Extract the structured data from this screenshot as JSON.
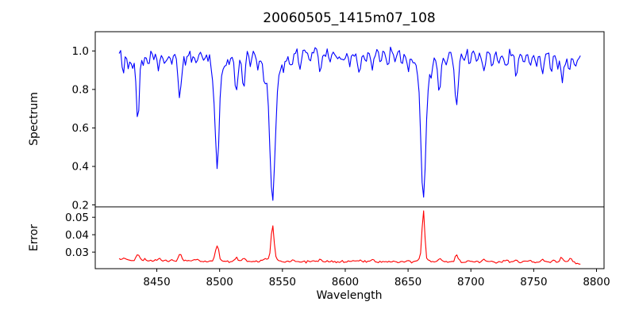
{
  "title": "20060505_1415m07_108",
  "chart_data": {
    "type": "line",
    "title": "20060505_1415m07_108",
    "xlabel": "Wavelength",
    "xlim": [
      8401,
      8806
    ],
    "xticks": [
      {
        "value": 8450,
        "label": "8450"
      },
      {
        "value": 8500,
        "label": "8500"
      },
      {
        "value": 8550,
        "label": "8550"
      },
      {
        "value": 8600,
        "label": "8600"
      },
      {
        "value": 8650,
        "label": "8650"
      },
      {
        "value": 8700,
        "label": "8700"
      },
      {
        "value": 8750,
        "label": "8750"
      },
      {
        "value": 8800,
        "label": "8800"
      }
    ],
    "x_data_range": [
      8420,
      8788
    ],
    "sample_step_angstrom": 1.2,
    "noise_seed": 20060505,
    "grid": false,
    "legend": "none",
    "panels": [
      {
        "name": "spectrum",
        "ylabel": "Spectrum",
        "line_color": "#0000ff",
        "ylim": [
          0.19,
          1.1
        ],
        "yticks": [
          {
            "value": 1.0,
            "label": "1.0"
          },
          {
            "value": 0.8,
            "label": "0.8"
          },
          {
            "value": 0.6,
            "label": "0.6"
          },
          {
            "value": 0.4,
            "label": "0.4"
          },
          {
            "value": 0.2,
            "label": "0.2"
          }
        ]
      },
      {
        "name": "error",
        "ylabel": "Error",
        "line_color": "#ff0000",
        "ylim": [
          0.0205,
          0.056
        ],
        "yticks": [
          {
            "value": 0.05,
            "label": "0.05"
          },
          {
            "value": 0.04,
            "label": "0.04"
          },
          {
            "value": 0.03,
            "label": "0.03"
          }
        ]
      }
    ],
    "spectrum": {
      "description": "blue flux curve, continuum near 1.0 with absorption lines; deepest cores: 8498 to 0.41, 8542 to 0.24, 8662 to 0.26, 8435 to 0.67, 8468 to 0.78, 8688 to 0.73",
      "continuum_points": [
        [
          8420,
          0.978
        ],
        [
          8450,
          0.987
        ],
        [
          8520,
          0.993
        ],
        [
          8650,
          0.993
        ],
        [
          8700,
          0.987
        ],
        [
          8788,
          0.974
        ]
      ],
      "noise_sigma": 0.013,
      "absorption_lines_center_depth_width": [
        [
          8423.5,
          0.09,
          1.0
        ],
        [
          8427,
          0.07,
          0.9
        ],
        [
          8431,
          0.05,
          0.9
        ],
        [
          8434.8,
          0.33,
          1.2
        ],
        [
          8439,
          0.06,
          0.9
        ],
        [
          8443,
          0.05,
          0.9
        ],
        [
          8447,
          0.04,
          0.8
        ],
        [
          8451.5,
          0.08,
          1.0
        ],
        [
          8456,
          0.05,
          0.9
        ],
        [
          8462,
          0.07,
          1.0
        ],
        [
          8468.4,
          0.22,
          1.4
        ],
        [
          8473,
          0.05,
          0.9
        ],
        [
          8478,
          0.04,
          0.9
        ],
        [
          8482,
          0.05,
          0.9
        ],
        [
          8488,
          0.04,
          0.9
        ],
        [
          8494,
          0.05,
          0.9
        ],
        [
          8498.0,
          0.52,
          1.7
        ],
        [
          8498.0,
          0.06,
          5.0
        ],
        [
          8504,
          0.04,
          0.9
        ],
        [
          8508.5,
          0.06,
          0.9
        ],
        [
          8513.5,
          0.21,
          1.2
        ],
        [
          8519,
          0.18,
          1.3
        ],
        [
          8524,
          0.06,
          0.9
        ],
        [
          8530,
          0.05,
          0.9
        ],
        [
          8536,
          0.07,
          1.0
        ],
        [
          8542.1,
          0.66,
          2.2
        ],
        [
          8542.1,
          0.09,
          8.0
        ],
        [
          8551,
          0.05,
          1.0
        ],
        [
          8557,
          0.06,
          1.0
        ],
        [
          8564,
          0.07,
          1.0
        ],
        [
          8572,
          0.05,
          0.9
        ],
        [
          8580,
          0.1,
          1.1
        ],
        [
          8588,
          0.06,
          0.9
        ],
        [
          8594,
          0.04,
          0.9
        ],
        [
          8598,
          0.06,
          0.9
        ],
        [
          8604,
          0.05,
          0.9
        ],
        [
          8611.2,
          0.11,
          1.2
        ],
        [
          8616,
          0.05,
          0.9
        ],
        [
          8621.5,
          0.08,
          1.0
        ],
        [
          8628,
          0.05,
          0.9
        ],
        [
          8634,
          0.06,
          0.9
        ],
        [
          8640,
          0.05,
          0.9
        ],
        [
          8645,
          0.05,
          0.9
        ],
        [
          8650,
          0.06,
          0.9
        ],
        [
          8662.2,
          0.65,
          2.0
        ],
        [
          8662.2,
          0.09,
          7.0
        ],
        [
          8669,
          0.05,
          0.9
        ],
        [
          8675,
          0.19,
          1.2
        ],
        [
          8680,
          0.07,
          0.9
        ],
        [
          8688.6,
          0.26,
          1.4
        ],
        [
          8694,
          0.05,
          0.9
        ],
        [
          8699,
          0.06,
          0.9
        ],
        [
          8705,
          0.05,
          0.9
        ],
        [
          8710,
          0.09,
          1.0
        ],
        [
          8717,
          0.07,
          1.0
        ],
        [
          8722,
          0.05,
          0.9
        ],
        [
          8728,
          0.08,
          1.0
        ],
        [
          8736,
          0.1,
          1.1
        ],
        [
          8742,
          0.05,
          0.9
        ],
        [
          8747,
          0.07,
          1.0
        ],
        [
          8752,
          0.05,
          0.9
        ],
        [
          8757,
          0.09,
          1.0
        ],
        [
          8764,
          0.07,
          1.0
        ],
        [
          8769,
          0.06,
          0.9
        ],
        [
          8773,
          0.12,
          1.1
        ],
        [
          8778,
          0.08,
          1.0
        ],
        [
          8783,
          0.06,
          0.9
        ]
      ]
    },
    "error": {
      "description": "red error curve, baseline ~0.025; spikes at absorption lines: 8498 to 0.034, 8542 to 0.046, 8662 to 0.055",
      "baseline_points": [
        [
          8420,
          0.0256
        ],
        [
          8435,
          0.0252
        ],
        [
          8460,
          0.025
        ],
        [
          8500,
          0.0247
        ],
        [
          8560,
          0.0246
        ],
        [
          8640,
          0.0245
        ],
        [
          8700,
          0.0243
        ],
        [
          8760,
          0.0242
        ],
        [
          8783,
          0.024
        ],
        [
          8788,
          0.0233
        ]
      ],
      "noise_sigma": 0.00032,
      "peaks_center_height_width": [
        [
          8424,
          0.0012,
          1.5
        ],
        [
          8434.8,
          0.0035,
          1.4
        ],
        [
          8440,
          0.0008,
          1.2
        ],
        [
          8451.5,
          0.0015,
          1.2
        ],
        [
          8462,
          0.001,
          1.2
        ],
        [
          8468.4,
          0.0042,
          1.2
        ],
        [
          8482,
          0.0008,
          1.2
        ],
        [
          8498.0,
          0.0092,
          1.4
        ],
        [
          8513.5,
          0.0022,
          1.2
        ],
        [
          8519,
          0.0016,
          1.2
        ],
        [
          8536,
          0.0008,
          1.2
        ],
        [
          8542.1,
          0.0185,
          1.1
        ],
        [
          8542.1,
          0.0025,
          3.5
        ],
        [
          8558,
          0.0006,
          1.2
        ],
        [
          8580,
          0.001,
          1.2
        ],
        [
          8611.2,
          0.0012,
          1.2
        ],
        [
          8621,
          0.0008,
          1.2
        ],
        [
          8650,
          0.0008,
          1.2
        ],
        [
          8662.2,
          0.0275,
          1.0
        ],
        [
          8662.2,
          0.0028,
          3.0
        ],
        [
          8675,
          0.0018,
          1.2
        ],
        [
          8688.6,
          0.0038,
          1.3
        ],
        [
          8699,
          0.0008,
          1.2
        ],
        [
          8710,
          0.0012,
          1.2
        ],
        [
          8728,
          0.0014,
          1.2
        ],
        [
          8736,
          0.0012,
          1.2
        ],
        [
          8747,
          0.001,
          1.2
        ],
        [
          8757,
          0.0016,
          1.2
        ],
        [
          8765,
          0.0014,
          1.2
        ],
        [
          8772,
          0.0026,
          1.2
        ],
        [
          8779,
          0.0022,
          1.2
        ]
      ]
    }
  }
}
